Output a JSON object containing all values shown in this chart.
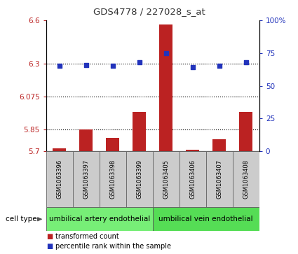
{
  "title": "GDS4778 / 227028_s_at",
  "samples": [
    "GSM1063396",
    "GSM1063397",
    "GSM1063398",
    "GSM1063399",
    "GSM1063405",
    "GSM1063406",
    "GSM1063407",
    "GSM1063408"
  ],
  "bar_values": [
    5.72,
    5.85,
    5.79,
    5.97,
    6.57,
    5.71,
    5.78,
    5.97
  ],
  "dot_values": [
    65,
    66,
    65,
    68,
    75,
    64,
    65,
    68
  ],
  "bar_color": "#bb2222",
  "dot_color": "#2233bb",
  "ylim_left": [
    5.7,
    6.6
  ],
  "ylim_right": [
    0,
    100
  ],
  "yticks_left": [
    5.7,
    5.85,
    6.075,
    6.3,
    6.6
  ],
  "ytick_labels_left": [
    "5.7",
    "5.85",
    "6.075",
    "6.3",
    "6.6"
  ],
  "yticks_right": [
    0,
    25,
    50,
    75,
    100
  ],
  "ytick_labels_right": [
    "0",
    "25",
    "50",
    "75",
    "100%"
  ],
  "hlines": [
    5.85,
    6.075,
    6.3
  ],
  "cell_types": [
    {
      "label": "umbilical artery endothelial",
      "start": 0,
      "end": 4,
      "color": "#77ee77"
    },
    {
      "label": "umbilical vein endothelial",
      "start": 4,
      "end": 8,
      "color": "#55dd55"
    }
  ],
  "cell_type_label": "cell type",
  "legend_items": [
    {
      "label": "transformed count",
      "color": "#bb2222"
    },
    {
      "label": "percentile rank within the sample",
      "color": "#2233bb"
    }
  ],
  "bg_color": "#ffffff",
  "bar_width": 0.5,
  "sample_box_color": "#cccccc",
  "sample_box_edge": "#888888"
}
